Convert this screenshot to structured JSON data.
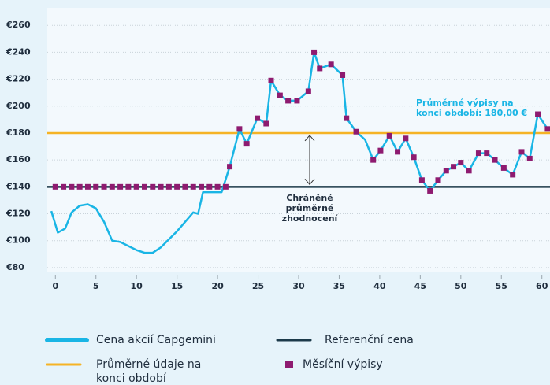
{
  "chart_data": {
    "type": "line",
    "xlim": [
      -1,
      61
    ],
    "xticks": [
      0,
      5,
      10,
      15,
      20,
      25,
      30,
      35,
      40,
      45,
      50,
      55,
      60
    ],
    "ylim": [
      77,
      273
    ],
    "yticks": [
      {
        "value": 80,
        "label": "€80"
      },
      {
        "value": 100,
        "label": "€100"
      },
      {
        "value": 120,
        "label": "€120"
      },
      {
        "value": 140,
        "label": "€140"
      },
      {
        "value": 160,
        "label": "€160"
      },
      {
        "value": 180,
        "label": "€180"
      },
      {
        "value": 200,
        "label": "€200"
      },
      {
        "value": 220,
        "label": "€220"
      },
      {
        "value": 240,
        "label": "€240"
      },
      {
        "value": 260,
        "label": "€260"
      }
    ],
    "grid": true,
    "series": [
      {
        "name": "Cena akcií Capgemini",
        "kind": "line",
        "color": "#19b5e5",
        "x": [
          -0.5,
          0.3,
          1.2,
          2,
          3,
          4,
          5,
          6,
          7,
          8,
          9,
          10,
          11,
          12,
          13,
          14,
          15,
          16,
          17,
          17.6,
          18.2,
          20.5,
          21.5,
          22.7,
          23.6,
          24.9,
          26,
          26.6,
          27.7,
          28.7,
          29.8,
          31.2,
          31.9,
          32.6,
          34,
          35.4,
          35.9,
          37.1,
          38.2,
          39.2,
          40.1,
          41.2,
          42.2,
          43.2,
          44.2,
          45.2,
          46.2,
          47.2,
          48.2,
          49.1,
          50,
          51,
          52.2,
          53.2,
          54.2,
          55.3,
          56.4,
          57.5,
          58.5,
          59.5,
          60.7
        ],
        "values": [
          122,
          106,
          109,
          121,
          126,
          127,
          124,
          114,
          100,
          99,
          96,
          93,
          91,
          91,
          95,
          101,
          107,
          114,
          121,
          120,
          136,
          136,
          155,
          183,
          172,
          191,
          187,
          219,
          208,
          204,
          204,
          211,
          240,
          228,
          231,
          223,
          191,
          181,
          175,
          160,
          167,
          178,
          166,
          176,
          162,
          145,
          137,
          145,
          152,
          155,
          158,
          152,
          165,
          165,
          160,
          154,
          149,
          166,
          161,
          194,
          183
        ]
      },
      {
        "name": "Referenční cena",
        "kind": "hline",
        "color": "#1c3a4a",
        "value": 140
      },
      {
        "name": "Průměrné údaje na konci období",
        "kind": "hline",
        "color": "#f5b325",
        "value": 180
      },
      {
        "name": "Měsíční výpisy",
        "kind": "markers",
        "color": "#8e1b70",
        "x": [
          0,
          1,
          2,
          3,
          4,
          5,
          6,
          7,
          8,
          9,
          10,
          11,
          12,
          13,
          14,
          15,
          16,
          17,
          18,
          19,
          20,
          21,
          21.5,
          22.7,
          23.6,
          24.9,
          26,
          26.6,
          27.7,
          28.7,
          29.8,
          31.2,
          31.9,
          32.6,
          34,
          35.4,
          35.9,
          37.1,
          39.2,
          40.1,
          41.2,
          42.2,
          43.2,
          44.2,
          45.2,
          46.2,
          47.2,
          48.2,
          49.1,
          50,
          51,
          52.2,
          53.2,
          54.2,
          55.3,
          56.4,
          57.5,
          58.5,
          59.5,
          60.7
        ],
        "values": [
          140,
          140,
          140,
          140,
          140,
          140,
          140,
          140,
          140,
          140,
          140,
          140,
          140,
          140,
          140,
          140,
          140,
          140,
          140,
          140,
          140,
          140,
          155,
          183,
          172,
          191,
          187,
          219,
          208,
          204,
          204,
          211,
          240,
          228,
          231,
          223,
          191,
          181,
          160,
          167,
          178,
          166,
          176,
          162,
          145,
          137,
          145,
          152,
          155,
          158,
          152,
          165,
          165,
          160,
          154,
          149,
          166,
          161,
          194,
          183
        ]
      }
    ],
    "annotations": [
      {
        "text": "Průměrné výpisy na konci období: 180,00 €",
        "color": "#19b5e5"
      },
      {
        "text": "Chráněné průměrné zhodnocení",
        "color": "#1f2d3d"
      }
    ]
  }
}
